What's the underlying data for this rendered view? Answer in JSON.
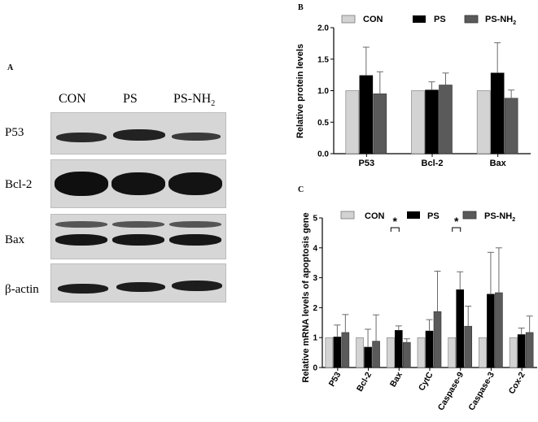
{
  "panels": {
    "a": "A",
    "b": "B",
    "c": "C"
  },
  "western_blot": {
    "lanes": [
      "CON",
      "PS",
      "PS-NH",
      "2"
    ],
    "rows": [
      "P53",
      "Bcl-2",
      "Bax",
      "β-actin"
    ]
  },
  "legend_labels": {
    "con": "CON",
    "ps": "PS",
    "psnh2_main": "PS-NH",
    "psnh2_sub": "2"
  },
  "colors": {
    "con": "#d3d3d3",
    "ps": "#000000",
    "psnh2": "#5a5a5a"
  },
  "chart_data": [
    {
      "type": "bar",
      "panel": "B",
      "categories": [
        "P53",
        "Bcl-2",
        "Bax"
      ],
      "series": [
        {
          "name": "CON",
          "values": [
            1.0,
            1.0,
            1.0
          ],
          "errors": [
            0,
            0,
            0
          ]
        },
        {
          "name": "PS",
          "values": [
            1.24,
            1.01,
            1.28
          ],
          "errors": [
            0.45,
            0.13,
            0.48
          ]
        },
        {
          "name": "PS-NH2",
          "values": [
            0.95,
            1.09,
            0.88
          ],
          "errors": [
            0.35,
            0.19,
            0.13
          ]
        }
      ],
      "ylabel": "Relative protein levels",
      "ylim": [
        0,
        2.0
      ],
      "yticks": [
        "0.0",
        "0.5",
        "1.0",
        "1.5",
        "2.0"
      ],
      "ytick_values": [
        0,
        0.5,
        1.0,
        1.5,
        2.0
      ],
      "legend": "top"
    },
    {
      "type": "bar",
      "panel": "C",
      "categories": [
        "P53",
        "Bcl-2",
        "Bax",
        "CytC",
        "Caspase-9",
        "Caspase-3",
        "Cox-2"
      ],
      "series": [
        {
          "name": "CON",
          "values": [
            1.0,
            1.0,
            1.0,
            1.0,
            1.0,
            1.0,
            1.0
          ],
          "errors": [
            0,
            0,
            0,
            0,
            0,
            0,
            0
          ]
        },
        {
          "name": "PS",
          "values": [
            1.02,
            0.68,
            1.24,
            1.22,
            2.6,
            2.45,
            1.1
          ],
          "errors": [
            0.4,
            0.6,
            0.15,
            0.38,
            0.6,
            1.4,
            0.22
          ]
        },
        {
          "name": "PS-NH2",
          "values": [
            1.17,
            0.88,
            0.84,
            1.87,
            1.38,
            2.5,
            1.17
          ],
          "errors": [
            0.6,
            0.88,
            0.12,
            1.35,
            0.67,
            1.5,
            0.55
          ]
        }
      ],
      "ylabel": "Relative mRNA levels of apoptosis gene",
      "ylim": [
        0,
        5
      ],
      "yticks": [
        "0",
        "1",
        "2",
        "3",
        "4",
        "5"
      ],
      "ytick_values": [
        0,
        1,
        2,
        3,
        4,
        5
      ],
      "significance": [
        {
          "category_index": 2,
          "label": "*"
        },
        {
          "category_index": 4,
          "label": "*"
        }
      ],
      "legend": "top"
    }
  ]
}
